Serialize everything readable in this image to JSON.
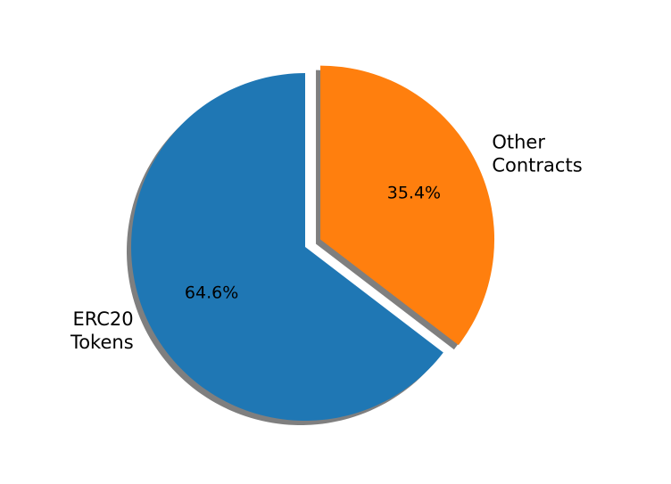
{
  "chart_data": {
    "type": "pie",
    "title": "",
    "categories": [
      "ERC20\nTokens",
      "Other\nContracts"
    ],
    "values": [
      64.6,
      35.4
    ],
    "percent_labels": [
      "64.6%",
      "35.4%"
    ],
    "colors": [
      "#1f77b4",
      "#ff7f0e"
    ],
    "shadow_color": "#7f7f7f",
    "exploded": [
      false,
      true
    ],
    "shadow": true,
    "start": "top",
    "direction": "counterclockwise",
    "legend": "none"
  }
}
